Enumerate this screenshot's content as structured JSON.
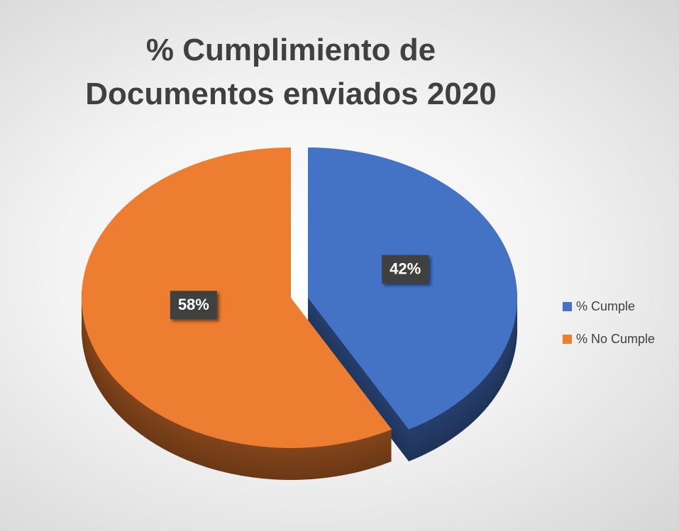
{
  "chart_data": {
    "type": "pie",
    "title": "% Cumplimiento de Documentos enviados 2020",
    "categories": [
      "% Cumple",
      "% No Cumple"
    ],
    "values": [
      42,
      58
    ],
    "value_labels": [
      "42%",
      "58%"
    ],
    "colors": [
      "#4472c4",
      "#ed7d31"
    ],
    "legend": "right"
  }
}
